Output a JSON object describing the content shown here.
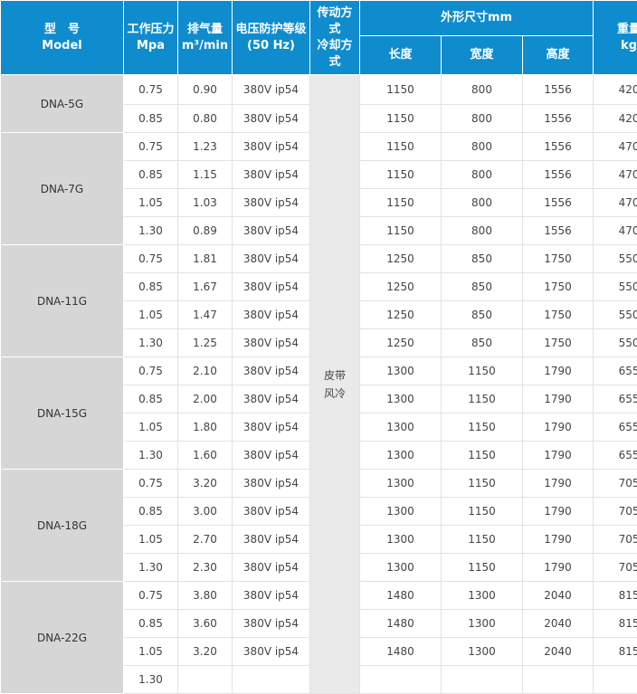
{
  "headers": {
    "model_cn": "型　号",
    "model_en": "Model",
    "pressure_cn": "工作压力",
    "pressure_unit": "Mpa",
    "flow_cn": "排气量",
    "flow_unit": "m³/min",
    "voltage_cn": "电压防护等级",
    "voltage_unit": "(50 Hz)",
    "drive_line1": "传动方",
    "drive_line2": "式",
    "drive_line3": "冷却方",
    "drive_line4": "式",
    "dims_cn": "外形尺寸mm",
    "length": "长度",
    "width": "宽度",
    "height": "高度",
    "weight_cn": "重量",
    "weight_unit": "kg"
  },
  "drive_cooling": {
    "line1": "皮带",
    "line2": "风冷"
  },
  "groups": [
    {
      "model": "DNA-5G",
      "rows": [
        {
          "pressure": "0.75",
          "flow": "0.90",
          "voltage": "380V ip54",
          "length": "1150",
          "width": "800",
          "height": "1556",
          "weight": "420"
        },
        {
          "pressure": "0.85",
          "flow": "0.80",
          "voltage": "380V ip54",
          "length": "1150",
          "width": "800",
          "height": "1556",
          "weight": "420"
        }
      ]
    },
    {
      "model": "DNA-7G",
      "rows": [
        {
          "pressure": "0.75",
          "flow": "1.23",
          "voltage": "380V ip54",
          "length": "1150",
          "width": "800",
          "height": "1556",
          "weight": "470"
        },
        {
          "pressure": "0.85",
          "flow": "1.15",
          "voltage": "380V ip54",
          "length": "1150",
          "width": "800",
          "height": "1556",
          "weight": "470"
        },
        {
          "pressure": "1.05",
          "flow": "1.03",
          "voltage": "380V ip54",
          "length": "1150",
          "width": "800",
          "height": "1556",
          "weight": "470"
        },
        {
          "pressure": "1.30",
          "flow": "0.89",
          "voltage": "380V ip54",
          "length": "1150",
          "width": "800",
          "height": "1556",
          "weight": "470"
        }
      ]
    },
    {
      "model": "DNA-11G",
      "rows": [
        {
          "pressure": "0.75",
          "flow": "1.81",
          "voltage": "380V ip54",
          "length": "1250",
          "width": "850",
          "height": "1750",
          "weight": "550"
        },
        {
          "pressure": "0.85",
          "flow": "1.67",
          "voltage": "380V ip54",
          "length": "1250",
          "width": "850",
          "height": "1750",
          "weight": "550"
        },
        {
          "pressure": "1.05",
          "flow": "1.47",
          "voltage": "380V ip54",
          "length": "1250",
          "width": "850",
          "height": "1750",
          "weight": "550"
        },
        {
          "pressure": "1.30",
          "flow": "1.25",
          "voltage": "380V ip54",
          "length": "1250",
          "width": "850",
          "height": "1750",
          "weight": "550"
        }
      ]
    },
    {
      "model": "DNA-15G",
      "rows": [
        {
          "pressure": "0.75",
          "flow": "2.10",
          "voltage": "380V ip54",
          "length": "1300",
          "width": "1150",
          "height": "1790",
          "weight": "655"
        },
        {
          "pressure": "0.85",
          "flow": "2.00",
          "voltage": "380V ip54",
          "length": "1300",
          "width": "1150",
          "height": "1790",
          "weight": "655"
        },
        {
          "pressure": "1.05",
          "flow": "1.80",
          "voltage": "380V ip54",
          "length": "1300",
          "width": "1150",
          "height": "1790",
          "weight": "655"
        },
        {
          "pressure": "1.30",
          "flow": "1.60",
          "voltage": "380V ip54",
          "length": "1300",
          "width": "1150",
          "height": "1790",
          "weight": "655"
        }
      ]
    },
    {
      "model": "DNA-18G",
      "rows": [
        {
          "pressure": "0.75",
          "flow": "3.20",
          "voltage": "380V ip54",
          "length": "1300",
          "width": "1150",
          "height": "1790",
          "weight": "705"
        },
        {
          "pressure": "0.85",
          "flow": "3.00",
          "voltage": "380V ip54",
          "length": "1300",
          "width": "1150",
          "height": "1790",
          "weight": "705"
        },
        {
          "pressure": "1.05",
          "flow": "2.70",
          "voltage": "380V ip54",
          "length": "1300",
          "width": "1150",
          "height": "1790",
          "weight": "705"
        },
        {
          "pressure": "1.30",
          "flow": "2.30",
          "voltage": "380V ip54",
          "length": "1300",
          "width": "1150",
          "height": "1790",
          "weight": "705"
        }
      ]
    },
    {
      "model": "DNA-22G",
      "rows": [
        {
          "pressure": "0.75",
          "flow": "3.80",
          "voltage": "380V ip54",
          "length": "1480",
          "width": "1300",
          "height": "2040",
          "weight": "815"
        },
        {
          "pressure": "0.85",
          "flow": "3.60",
          "voltage": "380V ip54",
          "length": "1480",
          "width": "1300",
          "height": "2040",
          "weight": "815"
        },
        {
          "pressure": "1.05",
          "flow": "3.20",
          "voltage": "380V ip54",
          "length": "1480",
          "width": "1300",
          "height": "2040",
          "weight": "815"
        },
        {
          "pressure": "1.30",
          "flow": "",
          "voltage": "",
          "length": "",
          "width": "",
          "height": "",
          "weight": ""
        }
      ]
    }
  ]
}
